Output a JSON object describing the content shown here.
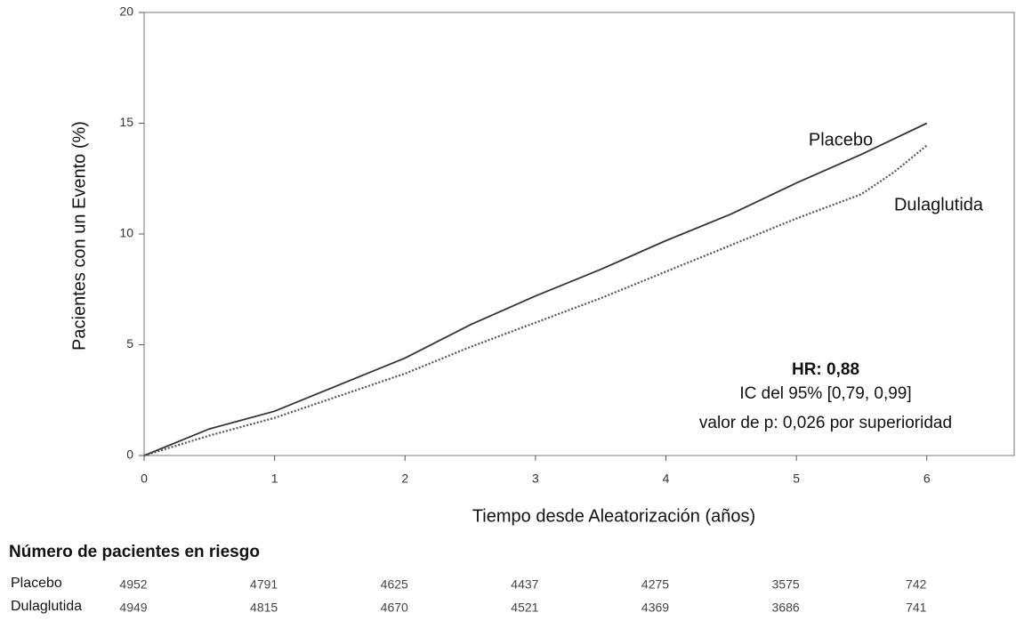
{
  "chart_data": {
    "type": "line",
    "xlabel": "Tiempo desde Aleatorización (años)",
    "ylabel": "Pacientes con un Evento (%)",
    "xlim": [
      0,
      6.67
    ],
    "ylim": [
      0,
      20
    ],
    "xticks": [
      0,
      1,
      2,
      3,
      4,
      5,
      6
    ],
    "yticks": [
      0,
      5,
      10,
      15,
      20
    ],
    "grid": false,
    "series": [
      {
        "name": "Placebo",
        "color": "#333333",
        "line_style": "solid",
        "x": [
          0,
          0.25,
          0.5,
          1,
          1.5,
          2,
          2.5,
          3,
          3.5,
          4,
          4.5,
          5,
          5.5,
          6
        ],
        "values": [
          0,
          0.6,
          1.2,
          2.0,
          3.2,
          4.4,
          5.9,
          7.2,
          8.4,
          9.7,
          10.9,
          12.3,
          13.6,
          15.0
        ]
      },
      {
        "name": "Dulaglutida",
        "color": "#555555",
        "line_style": "dotted",
        "x": [
          0,
          0.5,
          1,
          1.5,
          2,
          2.5,
          3,
          3.5,
          4,
          4.5,
          5,
          5.5,
          5.75,
          6
        ],
        "values": [
          0,
          0.9,
          1.7,
          2.7,
          3.7,
          4.9,
          6.0,
          7.1,
          8.3,
          9.5,
          10.7,
          11.8,
          12.8,
          14.0
        ]
      }
    ],
    "annotation": [
      "HR: 0,88",
      "IC del 95% [0,79, 0,99]",
      "valor de p: 0,026 por superioridad"
    ],
    "risk_table": {
      "title": "Número de pacientes en riesgo",
      "rows": [
        {
          "name": "Placebo",
          "values": [
            4952,
            4791,
            4625,
            4437,
            4275,
            3575,
            742
          ]
        },
        {
          "name": "Dulaglutida",
          "values": [
            4949,
            4815,
            4670,
            4521,
            4369,
            3686,
            741
          ]
        }
      ]
    }
  }
}
